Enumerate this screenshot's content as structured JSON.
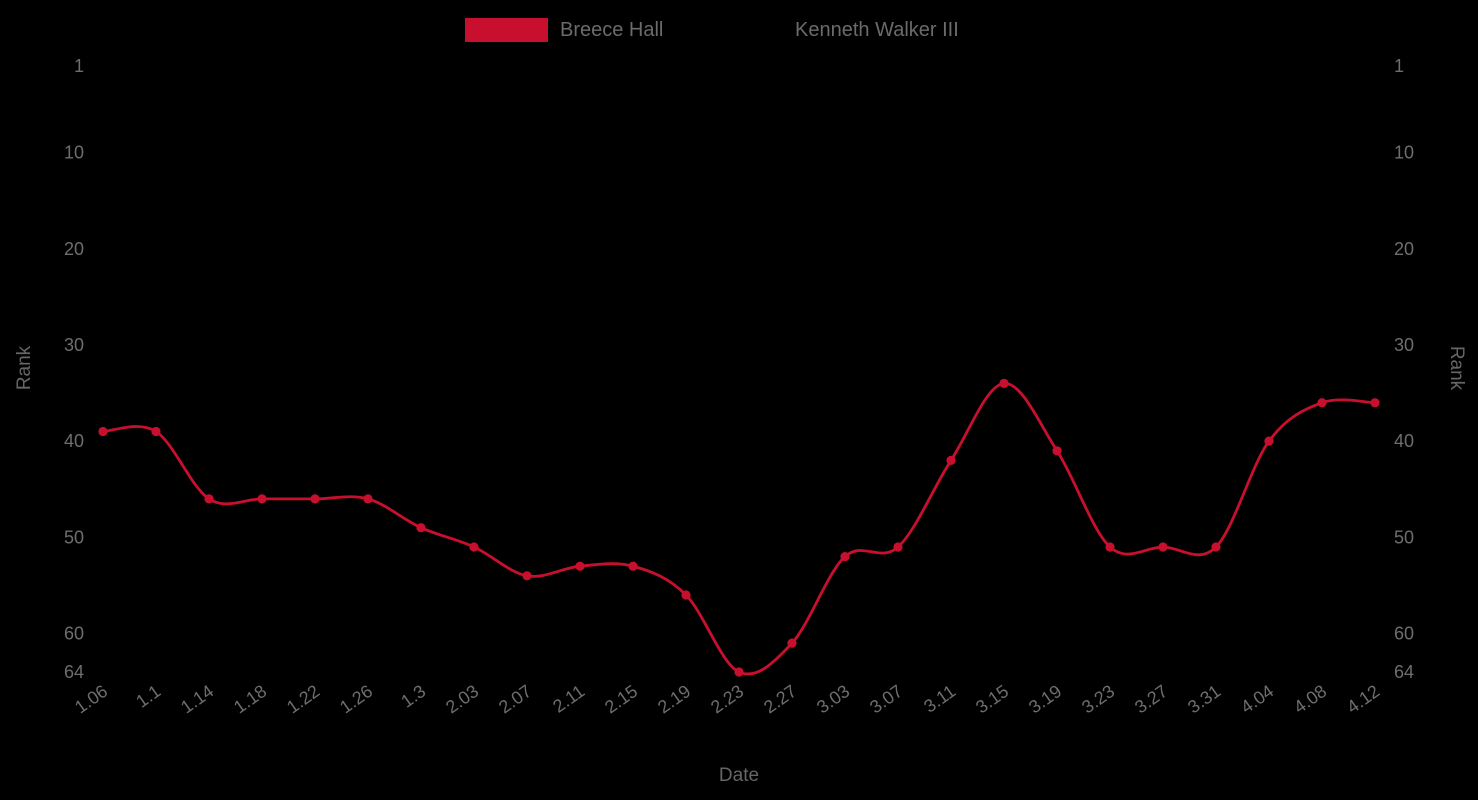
{
  "legend": {
    "items": [
      {
        "label": "Breece Hall",
        "color": "#c8102e"
      },
      {
        "label": "Kenneth Walker III",
        "color": "#000000"
      }
    ]
  },
  "axes": {
    "x_title": "Date",
    "y_title_left": "Rank",
    "y_title_right": "Rank"
  },
  "colors": {
    "background": "#000000",
    "tick_text": "#6e6e6e",
    "label_text": "#666666",
    "line": "#c8102e"
  },
  "chart_data": {
    "type": "line",
    "title": "",
    "xlabel": "Date",
    "ylabel": "Rank",
    "x": [
      "1.06",
      "1.1",
      "1.14",
      "1.18",
      "1.22",
      "1.26",
      "1.3",
      "2.03",
      "2.07",
      "2.11",
      "2.15",
      "2.19",
      "2.23",
      "2.27",
      "3.03",
      "3.07",
      "3.11",
      "3.15",
      "3.19",
      "3.23",
      "3.27",
      "3.31",
      "4.04",
      "4.08",
      "4.12"
    ],
    "series": [
      {
        "name": "Breece Hall",
        "color": "#c8102e",
        "marker": "circle",
        "smooth": true,
        "values": [
          39,
          39,
          46,
          46,
          46,
          46,
          49,
          51,
          54,
          53,
          53,
          56,
          64,
          61,
          52,
          51,
          42,
          34,
          41,
          51,
          51,
          51,
          40,
          36,
          36
        ]
      },
      {
        "name": "Kenneth Walker III",
        "color": "#000000",
        "marker": "circle",
        "smooth": true,
        "values": []
      }
    ],
    "yticks": [
      1,
      10,
      20,
      30,
      40,
      50,
      60,
      64
    ],
    "ylim": [
      1,
      64
    ],
    "y_inverted": true,
    "dual_y_axis": true,
    "grid": false,
    "legend_position": "top-center",
    "x_tick_rotation": -35
  }
}
